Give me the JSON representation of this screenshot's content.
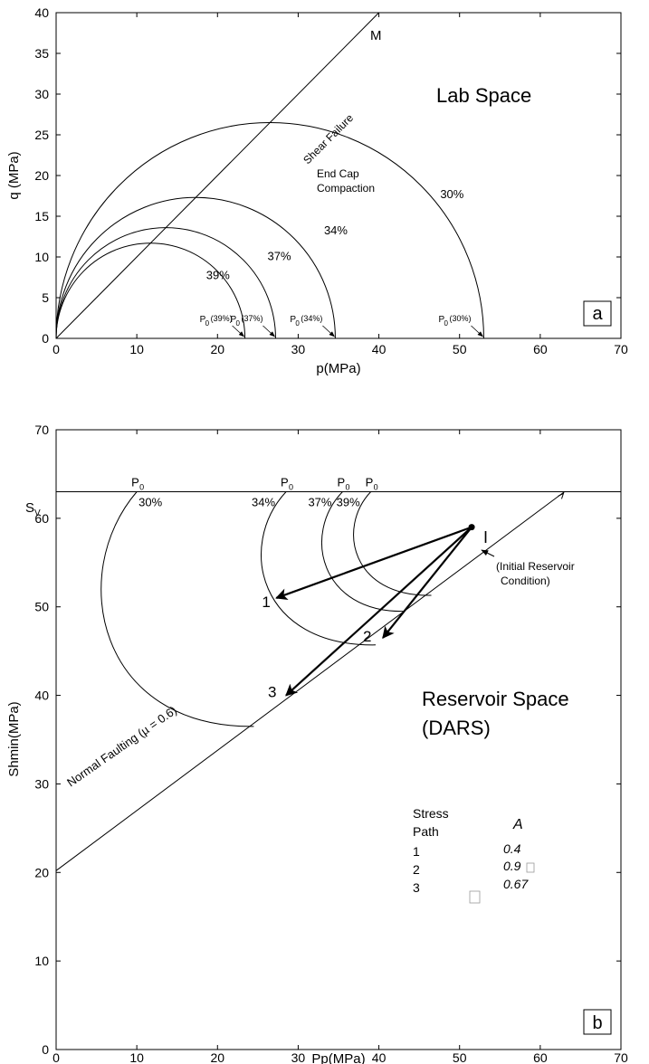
{
  "chart_data": [
    {
      "type": "line",
      "panel_label": "a",
      "xlabel": "p(MPa)",
      "ylabel": "q (MPa)",
      "xlim": [
        0,
        70
      ],
      "ylim": [
        0,
        40
      ],
      "xticks": [
        "0",
        "10",
        "20",
        "30",
        "40",
        "50",
        "60",
        "70"
      ],
      "yticks": [
        "0",
        "5",
        "10",
        "15",
        "20",
        "25",
        "30",
        "35",
        "40"
      ],
      "grid": false,
      "annotations": {
        "space": "Lab Space",
        "shear_failure": "Shear Failure",
        "m_label": "M",
        "end_cap_1": "End Cap",
        "end_cap_2": "Compaction"
      },
      "failure_line": {
        "from": [
          0,
          0
        ],
        "to": [
          40,
          40
        ]
      },
      "caps": [
        {
          "porosity": "39%",
          "p0": 23.4,
          "p0_label": "(39%)",
          "porosity_label_at": [
            18.6,
            7.3
          ]
        },
        {
          "porosity": "37%",
          "p0": 27.2,
          "p0_label": "(37%)",
          "porosity_label_at": [
            26.2,
            9.6
          ]
        },
        {
          "porosity": "34%",
          "p0": 34.6,
          "p0_label": "(34%)",
          "porosity_label_at": [
            33.2,
            12.8
          ]
        },
        {
          "porosity": "30%",
          "p0": 53.0,
          "p0_label": "(30%)",
          "porosity_label_at": [
            47.6,
            17.2
          ]
        }
      ]
    },
    {
      "type": "line",
      "panel_label": "b",
      "xlabel": "Pp(MPa)",
      "ylabel": "Shmin(MPa)",
      "xlim": [
        0,
        70
      ],
      "ylim": [
        0,
        70
      ],
      "xticks": [
        "0",
        "10",
        "20",
        "30",
        "40",
        "50",
        "60",
        "70"
      ],
      "yticks": [
        "0",
        "10",
        "20",
        "30",
        "40",
        "50",
        "60",
        "70"
      ],
      "grid": false,
      "annotations": {
        "sv": "S",
        "sv_sub": "V",
        "space_1": "Reservoir Space",
        "space_2": "(DARS)",
        "faulting": "Normal Faulting (µ = 0.6)",
        "initial_point": "I",
        "initial_1": "(Initial Reservoir",
        "initial_2": "Condition)",
        "p0_label": "P",
        "p0_sub": "0"
      },
      "sv_level": 63,
      "faulting_line": {
        "from": [
          0,
          20.2
        ],
        "to": [
          63,
          63
        ]
      },
      "caps": [
        {
          "porosity": "30%",
          "top": [
            10,
            63
          ],
          "end": [
            24.5,
            36.5
          ]
        },
        {
          "porosity": "34%",
          "top": [
            28.5,
            63
          ],
          "end": [
            39.6,
            45.7
          ]
        },
        {
          "porosity": "37%",
          "top": [
            35.5,
            63
          ],
          "end": [
            43.2,
            49.5
          ]
        },
        {
          "porosity": "39%",
          "top": [
            39.0,
            63
          ],
          "end": [
            46.5,
            51.3
          ]
        }
      ],
      "initial_condition": [
        51.5,
        59
      ],
      "stress_paths": [
        {
          "label": "1",
          "to": [
            27.3,
            51
          ]
        },
        {
          "label": "2",
          "to": [
            40.5,
            46.5
          ]
        },
        {
          "label": "3",
          "to": [
            28.5,
            40
          ]
        }
      ],
      "table": {
        "header_1": "Stress",
        "header_2": "Path",
        "a_header": "A",
        "rows": [
          {
            "path": "1",
            "a": "0.4"
          },
          {
            "path": "2",
            "a": "0.9"
          },
          {
            "path": "3",
            "a": "0.67"
          }
        ]
      }
    }
  ]
}
